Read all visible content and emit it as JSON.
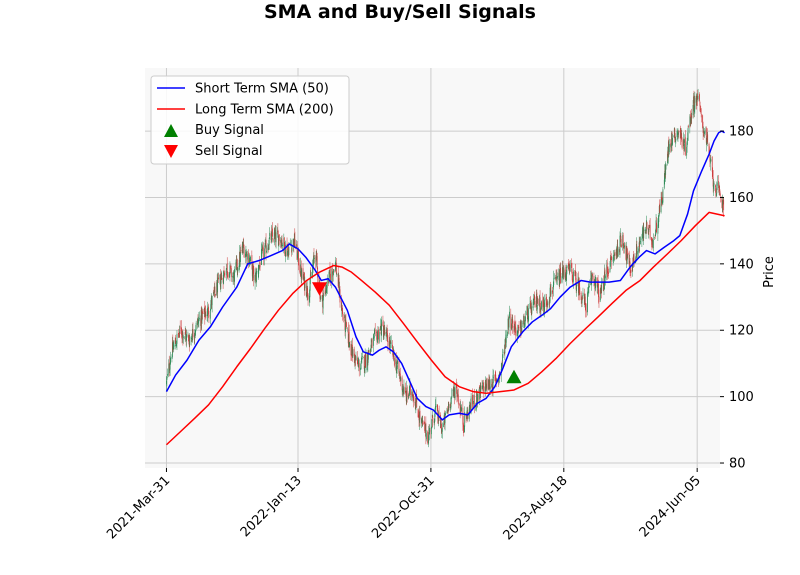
{
  "chart_data": {
    "type": "line",
    "title": "SMA and Buy/Sell Signals",
    "xlabel": "",
    "ylabel": "Price",
    "x_axis": "date",
    "xlim": [
      "2021-02-12",
      "2024-07-25"
    ],
    "ylim": [
      78.5,
      199
    ],
    "grid": true,
    "legend_position": "top-left",
    "x_ticks": [
      "2021-Mar-31",
      "2022-Jan-13",
      "2022-Oct-31",
      "2023-Aug-18",
      "2024-Jun-05"
    ],
    "y_ticks": [
      80,
      100,
      120,
      140,
      160,
      180
    ],
    "series": [
      {
        "name": "Short Term SMA (50)",
        "color": "#0000ff",
        "points": [
          [
            "2021-03-31",
            101.5
          ],
          [
            "2021-04-20",
            106.5
          ],
          [
            "2021-05-15",
            111
          ],
          [
            "2021-06-10",
            117
          ],
          [
            "2021-07-05",
            121
          ],
          [
            "2021-08-01",
            127
          ],
          [
            "2021-09-01",
            133
          ],
          [
            "2021-09-25",
            140
          ],
          [
            "2021-10-20",
            141
          ],
          [
            "2021-11-15",
            142.5
          ],
          [
            "2021-12-10",
            144
          ],
          [
            "2021-12-25",
            146
          ],
          [
            "2022-01-13",
            144.5
          ],
          [
            "2022-01-30",
            142
          ],
          [
            "2022-02-20",
            138
          ],
          [
            "2022-03-05",
            135
          ],
          [
            "2022-03-20",
            135.5
          ],
          [
            "2022-04-05",
            133
          ],
          [
            "2022-05-01",
            126
          ],
          [
            "2022-05-20",
            118
          ],
          [
            "2022-06-05",
            113.5
          ],
          [
            "2022-06-25",
            112.5
          ],
          [
            "2022-07-10",
            114
          ],
          [
            "2022-07-25",
            115
          ],
          [
            "2022-08-10",
            113.5
          ],
          [
            "2022-08-28",
            110
          ],
          [
            "2022-09-15",
            104.5
          ],
          [
            "2022-10-01",
            99.5
          ],
          [
            "2022-10-20",
            97
          ],
          [
            "2022-11-05",
            96
          ],
          [
            "2022-11-25",
            93
          ],
          [
            "2022-12-10",
            94.5
          ],
          [
            "2023-01-01",
            95
          ],
          [
            "2023-01-20",
            94.5
          ],
          [
            "2023-02-10",
            98
          ],
          [
            "2023-03-01",
            99.5
          ],
          [
            "2023-03-20",
            103
          ],
          [
            "2023-04-05",
            108
          ],
          [
            "2023-04-25",
            115
          ],
          [
            "2023-05-20",
            119.5
          ],
          [
            "2023-06-10",
            122.5
          ],
          [
            "2023-07-01",
            124.5
          ],
          [
            "2023-07-20",
            126.5
          ],
          [
            "2023-08-10",
            130
          ],
          [
            "2023-09-01",
            133
          ],
          [
            "2023-09-25",
            135
          ],
          [
            "2023-10-15",
            134.5
          ],
          [
            "2023-11-05",
            134.5
          ],
          [
            "2023-11-25",
            134.5
          ],
          [
            "2023-12-20",
            135
          ],
          [
            "2024-01-10",
            139
          ],
          [
            "2024-01-30",
            142
          ],
          [
            "2024-02-15",
            144
          ],
          [
            "2024-03-05",
            143
          ],
          [
            "2024-03-25",
            145
          ],
          [
            "2024-04-15",
            147
          ],
          [
            "2024-04-28",
            148.5
          ],
          [
            "2024-05-15",
            155
          ],
          [
            "2024-05-28",
            162
          ],
          [
            "2024-06-15",
            168
          ],
          [
            "2024-07-01",
            173
          ],
          [
            "2024-07-12",
            177
          ],
          [
            "2024-07-22",
            179.5
          ],
          [
            "2024-07-29",
            180
          ],
          [
            "2024-08-04",
            179.5
          ]
        ]
      },
      {
        "name": "Long Term SMA (200)",
        "color": "#ff0000",
        "points": [
          [
            "2021-03-31",
            85.5
          ],
          [
            "2021-05-01",
            89.5
          ],
          [
            "2021-06-01",
            93.5
          ],
          [
            "2021-07-01",
            97.5
          ],
          [
            "2021-08-01",
            103
          ],
          [
            "2021-09-01",
            109
          ],
          [
            "2021-10-01",
            114.5
          ],
          [
            "2021-11-01",
            120.5
          ],
          [
            "2021-12-01",
            126
          ],
          [
            "2022-01-01",
            131
          ],
          [
            "2022-02-01",
            135
          ],
          [
            "2022-03-01",
            137.5
          ],
          [
            "2022-04-01",
            139.5
          ],
          [
            "2022-04-20",
            139
          ],
          [
            "2022-05-10",
            137.5
          ],
          [
            "2022-06-01",
            135
          ],
          [
            "2022-07-01",
            131.5
          ],
          [
            "2022-08-01",
            127.5
          ],
          [
            "2022-09-01",
            122
          ],
          [
            "2022-10-01",
            116.5
          ],
          [
            "2022-11-01",
            111
          ],
          [
            "2022-12-01",
            106
          ],
          [
            "2023-01-01",
            103
          ],
          [
            "2023-02-01",
            101.5
          ],
          [
            "2023-03-01",
            101
          ],
          [
            "2023-04-01",
            101.5
          ],
          [
            "2023-05-01",
            102
          ],
          [
            "2023-06-01",
            104
          ],
          [
            "2023-07-01",
            107.5
          ],
          [
            "2023-08-01",
            111.5
          ],
          [
            "2023-09-01",
            116
          ],
          [
            "2023-10-01",
            120
          ],
          [
            "2023-11-01",
            124
          ],
          [
            "2023-12-01",
            128
          ],
          [
            "2024-01-01",
            132
          ],
          [
            "2024-02-01",
            135
          ],
          [
            "2024-03-01",
            139
          ],
          [
            "2024-04-01",
            143
          ],
          [
            "2024-05-01",
            147
          ],
          [
            "2024-06-01",
            151.5
          ],
          [
            "2024-07-01",
            155.5
          ],
          [
            "2024-08-04",
            154.5
          ]
        ]
      }
    ],
    "signals": [
      {
        "name": "Buy Signal",
        "marker": "triangle-up",
        "color": "#008000",
        "points": [
          [
            "2023-05-01",
            106
          ]
        ]
      },
      {
        "name": "Sell Signal",
        "marker": "triangle-down",
        "color": "#ff0000",
        "points": [
          [
            "2022-03-01",
            132.5
          ]
        ]
      }
    ],
    "price_candles": {
      "up_color": "#2e8b57",
      "down_color": "#cd3b3b",
      "price_path": [
        [
          "2021-03-31",
          104
        ],
        [
          "2021-04-10",
          113
        ],
        [
          "2021-05-01",
          120
        ],
        [
          "2021-05-20",
          117
        ],
        [
          "2021-06-10",
          123
        ],
        [
          "2021-07-01",
          126
        ],
        [
          "2021-07-20",
          133
        ],
        [
          "2021-08-10",
          139
        ],
        [
          "2021-08-25",
          136
        ],
        [
          "2021-09-15",
          145
        ],
        [
          "2021-09-30",
          141
        ],
        [
          "2021-10-10",
          135
        ],
        [
          "2021-10-25",
          142
        ],
        [
          "2021-11-15",
          148
        ],
        [
          "2021-12-05",
          148
        ],
        [
          "2021-12-20",
          144
        ],
        [
          "2022-01-05",
          147
        ],
        [
          "2022-01-20",
          137
        ],
        [
          "2022-02-05",
          131
        ],
        [
          "2022-02-20",
          144
        ],
        [
          "2022-03-05",
          128
        ],
        [
          "2022-03-20",
          135
        ],
        [
          "2022-04-05",
          140
        ],
        [
          "2022-04-20",
          125
        ],
        [
          "2022-05-10",
          114
        ],
        [
          "2022-05-25",
          109
        ],
        [
          "2022-06-10",
          111
        ],
        [
          "2022-06-25",
          116
        ],
        [
          "2022-07-15",
          121
        ],
        [
          "2022-08-01",
          116
        ],
        [
          "2022-08-20",
          108
        ],
        [
          "2022-09-05",
          100
        ],
        [
          "2022-09-20",
          102
        ],
        [
          "2022-10-10",
          92
        ],
        [
          "2022-10-25",
          88
        ],
        [
          "2022-11-10",
          96
        ],
        [
          "2022-11-25",
          90
        ],
        [
          "2022-12-10",
          98
        ],
        [
          "2022-12-25",
          103
        ],
        [
          "2023-01-10",
          92
        ],
        [
          "2023-01-25",
          97
        ],
        [
          "2023-02-10",
          100
        ],
        [
          "2023-02-25",
          103
        ],
        [
          "2023-03-15",
          104
        ],
        [
          "2023-04-01",
          107
        ],
        [
          "2023-04-20",
          124
        ],
        [
          "2023-05-10",
          119
        ],
        [
          "2023-06-01",
          125
        ],
        [
          "2023-06-20",
          129
        ],
        [
          "2023-07-05",
          127
        ],
        [
          "2023-07-25",
          133
        ],
        [
          "2023-08-15",
          137
        ],
        [
          "2023-09-01",
          138
        ],
        [
          "2023-09-20",
          133
        ],
        [
          "2023-10-05",
          127
        ],
        [
          "2023-10-20",
          137
        ],
        [
          "2023-11-05",
          130
        ],
        [
          "2023-11-20",
          138
        ],
        [
          "2023-12-05",
          142
        ],
        [
          "2023-12-25",
          148
        ],
        [
          "2024-01-10",
          138
        ],
        [
          "2024-01-30",
          146
        ],
        [
          "2024-02-15",
          151
        ],
        [
          "2024-03-01",
          147
        ],
        [
          "2024-03-20",
          160
        ],
        [
          "2024-04-05",
          177
        ],
        [
          "2024-04-25",
          180
        ],
        [
          "2024-05-10",
          175
        ],
        [
          "2024-05-25",
          187
        ],
        [
          "2024-06-05",
          191
        ],
        [
          "2024-06-15",
          183
        ],
        [
          "2024-06-25",
          178
        ],
        [
          "2024-07-10",
          165
        ],
        [
          "2024-07-25",
          160
        ],
        [
          "2024-08-04",
          158
        ]
      ]
    }
  }
}
